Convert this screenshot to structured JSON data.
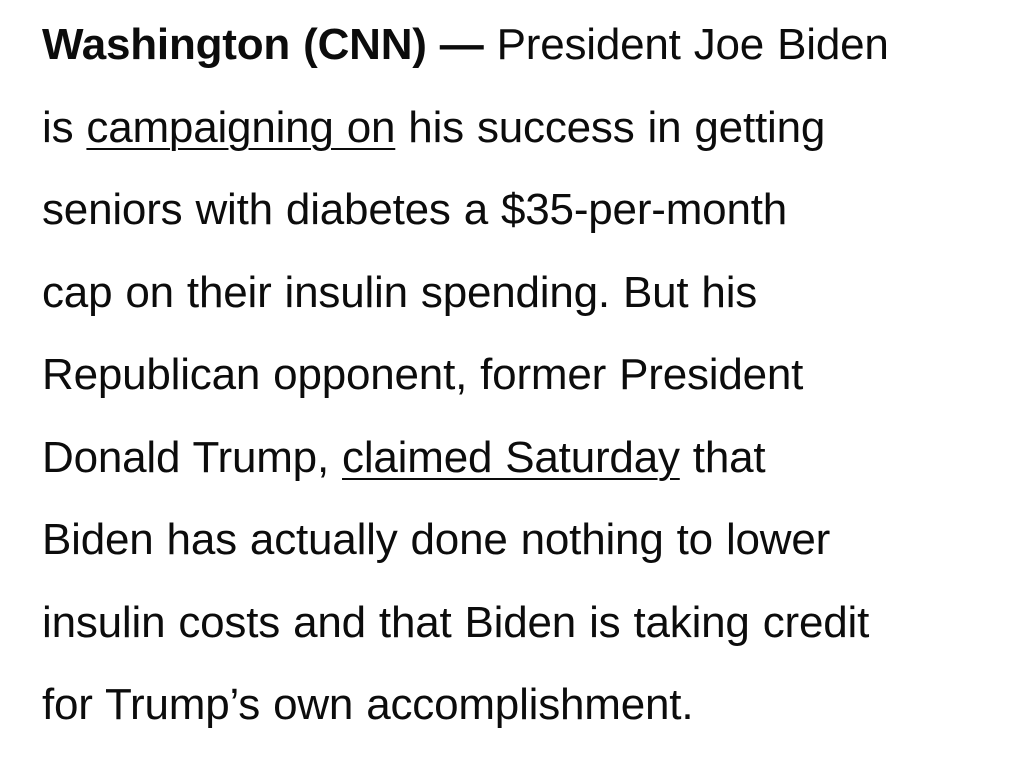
{
  "article": {
    "dateline": "Washington (CNN) —",
    "lines": [
      {
        "before": " President Joe Biden"
      },
      {
        "before": "is ",
        "link": "campaigning on",
        "after": " his success in getting"
      },
      {
        "before": "seniors with diabetes a $35-per-month"
      },
      {
        "before": "cap on their insulin spending. But his"
      },
      {
        "before": "Republican opponent, former President"
      },
      {
        "before": "Donald Trump, ",
        "link": "claimed Saturday",
        "after": " that"
      },
      {
        "before": "Biden has actually done nothing to lower"
      },
      {
        "before": "insulin costs and that Biden is taking credit"
      },
      {
        "before": "for Trump’s own accomplishment."
      }
    ]
  }
}
